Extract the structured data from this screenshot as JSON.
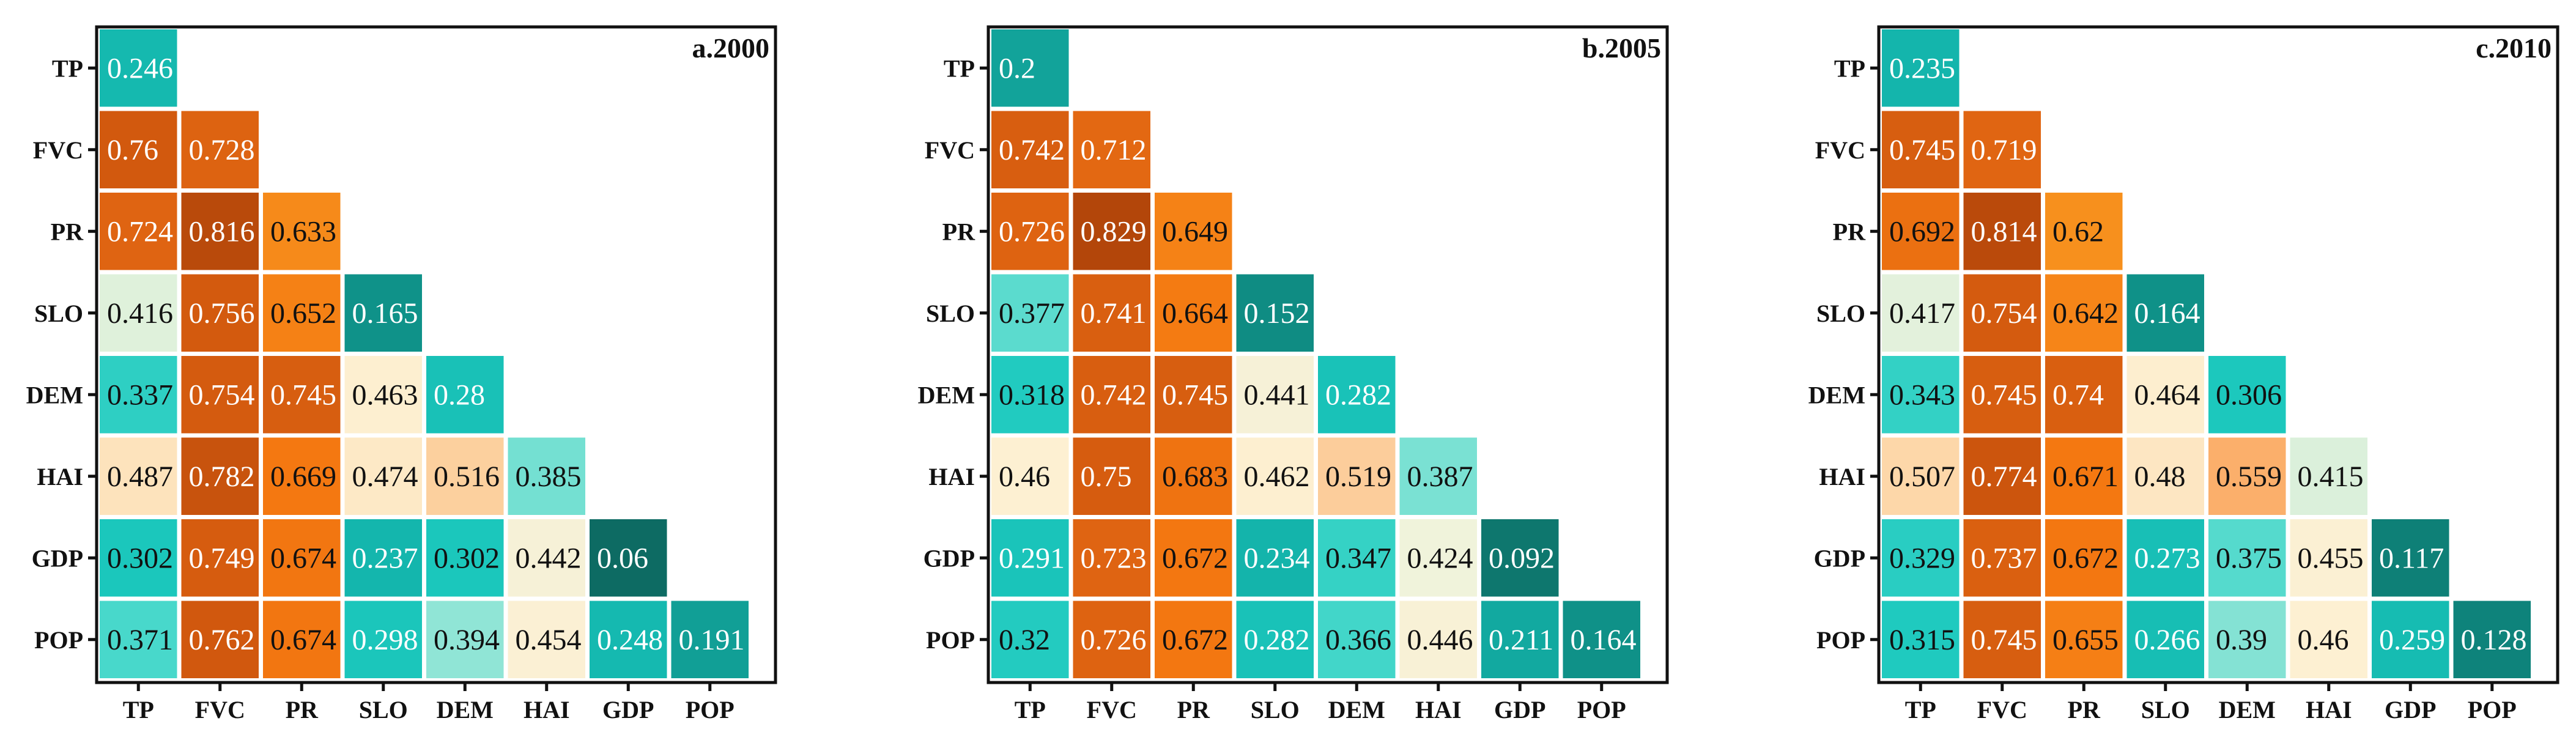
{
  "colors": {
    "scale": [
      {
        "v": 0.06,
        "c": "#0d6b63"
      },
      {
        "v": 0.16,
        "c": "#0f8f86"
      },
      {
        "v": 0.24,
        "c": "#14b7ae"
      },
      {
        "v": 0.31,
        "c": "#1cc9be"
      },
      {
        "v": 0.37,
        "c": "#45d7ca"
      },
      {
        "v": 0.4,
        "c": "#a3e8d9"
      },
      {
        "v": 0.42,
        "c": "#eef3dc"
      },
      {
        "v": 0.46,
        "c": "#fdf0d2"
      },
      {
        "v": 0.5,
        "c": "#fddcb1"
      },
      {
        "v": 0.56,
        "c": "#fbae6a"
      },
      {
        "v": 0.62,
        "c": "#f7901d"
      },
      {
        "v": 0.67,
        "c": "#f47811"
      },
      {
        "v": 0.72,
        "c": "#e06512"
      },
      {
        "v": 0.76,
        "c": "#d2590e"
      },
      {
        "v": 0.83,
        "c": "#b3460a"
      }
    ],
    "dark_text_range": [
      0.3,
      0.7
    ]
  },
  "chart_data": [
    {
      "type": "heatmap",
      "title": "a.2000",
      "rows": [
        "TP",
        "FVC",
        "PR",
        "SLO",
        "DEM",
        "HAI",
        "GDP",
        "POP"
      ],
      "columns": [
        "TP",
        "FVC",
        "PR",
        "SLO",
        "DEM",
        "HAI",
        "GDP",
        "POP"
      ],
      "values": [
        [
          0.246
        ],
        [
          0.76,
          0.728
        ],
        [
          0.724,
          0.816,
          0.633
        ],
        [
          0.416,
          0.756,
          0.652,
          0.165
        ],
        [
          0.337,
          0.754,
          0.745,
          0.463,
          0.28
        ],
        [
          0.487,
          0.782,
          0.669,
          0.474,
          0.516,
          0.385
        ],
        [
          0.302,
          0.749,
          0.674,
          0.237,
          0.302,
          0.442,
          0.06
        ],
        [
          0.371,
          0.762,
          0.674,
          0.298,
          0.394,
          0.454,
          0.248,
          0.191
        ]
      ]
    },
    {
      "type": "heatmap",
      "title": "b.2005",
      "rows": [
        "TP",
        "FVC",
        "PR",
        "SLO",
        "DEM",
        "HAI",
        "GDP",
        "POP"
      ],
      "columns": [
        "TP",
        "FVC",
        "PR",
        "SLO",
        "DEM",
        "HAI",
        "GDP",
        "POP"
      ],
      "values": [
        [
          0.2
        ],
        [
          0.742,
          0.712
        ],
        [
          0.726,
          0.829,
          0.649
        ],
        [
          0.377,
          0.741,
          0.664,
          0.152
        ],
        [
          0.318,
          0.742,
          0.745,
          0.441,
          0.282
        ],
        [
          0.46,
          0.75,
          0.683,
          0.462,
          0.519,
          0.387
        ],
        [
          0.291,
          0.723,
          0.672,
          0.234,
          0.347,
          0.424,
          0.092
        ],
        [
          0.32,
          0.726,
          0.672,
          0.282,
          0.366,
          0.446,
          0.211,
          0.164
        ]
      ]
    },
    {
      "type": "heatmap",
      "title": "c.2010",
      "rows": [
        "TP",
        "FVC",
        "PR",
        "SLO",
        "DEM",
        "HAI",
        "GDP",
        "POP"
      ],
      "columns": [
        "TP",
        "FVC",
        "PR",
        "SLO",
        "DEM",
        "HAI",
        "GDP",
        "POP"
      ],
      "values": [
        [
          0.235
        ],
        [
          0.745,
          0.719
        ],
        [
          0.692,
          0.814,
          0.62
        ],
        [
          0.417,
          0.754,
          0.642,
          0.164
        ],
        [
          0.343,
          0.745,
          0.74,
          0.464,
          0.306
        ],
        [
          0.507,
          0.774,
          0.671,
          0.48,
          0.559,
          0.415
        ],
        [
          0.329,
          0.737,
          0.672,
          0.273,
          0.375,
          0.455,
          0.117
        ],
        [
          0.315,
          0.745,
          0.655,
          0.266,
          0.39,
          0.46,
          0.259,
          0.128
        ]
      ]
    }
  ]
}
